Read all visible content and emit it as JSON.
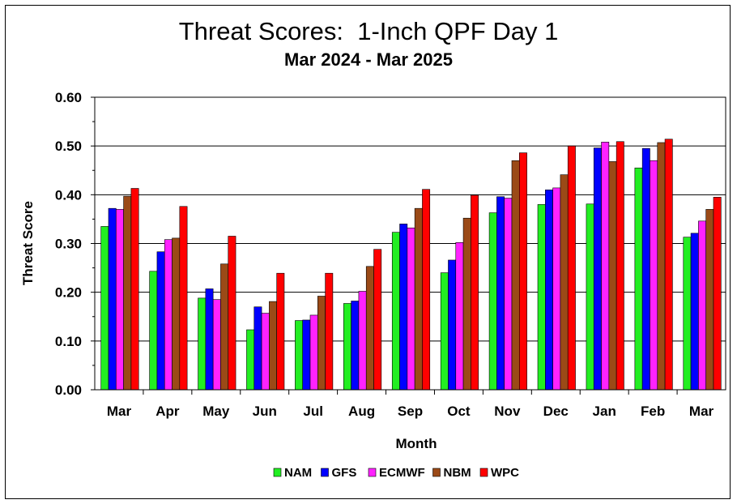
{
  "chart_data": {
    "type": "bar",
    "title": "Threat Scores:  1-Inch QPF Day 1",
    "subtitle": "Mar 2024 - Mar 2025",
    "xlabel": "Month",
    "ylabel": "Threat Score",
    "ylim": [
      0,
      0.6
    ],
    "yticks": [
      "0.00",
      "0.10",
      "0.20",
      "0.30",
      "0.40",
      "0.50",
      "0.60"
    ],
    "grid": "horizontal major",
    "legend_position": "bottom",
    "categories": [
      "Mar",
      "Apr",
      "May",
      "Jun",
      "Jul",
      "Aug",
      "Sep",
      "Oct",
      "Nov",
      "Dec",
      "Jan",
      "Feb",
      "Mar"
    ],
    "series": [
      {
        "name": "NAM",
        "color": "#22ee22",
        "values": [
          0.335,
          0.243,
          0.188,
          0.123,
          0.142,
          0.177,
          0.323,
          0.24,
          0.363,
          0.38,
          0.381,
          0.455,
          0.313
        ]
      },
      {
        "name": "GFS",
        "color": "#0000ff",
        "values": [
          0.372,
          0.283,
          0.207,
          0.17,
          0.143,
          0.182,
          0.34,
          0.266,
          0.396,
          0.41,
          0.496,
          0.495,
          0.321
        ]
      },
      {
        "name": "ECMWF",
        "color": "#ff22ff",
        "values": [
          0.37,
          0.308,
          0.185,
          0.157,
          0.153,
          0.202,
          0.332,
          0.302,
          0.393,
          0.414,
          0.508,
          0.47,
          0.346
        ]
      },
      {
        "name": "NBM",
        "color": "#9b4a17",
        "values": [
          0.397,
          0.311,
          0.258,
          0.181,
          0.192,
          0.253,
          0.372,
          0.352,
          0.47,
          0.441,
          0.468,
          0.507,
          0.37
        ]
      },
      {
        "name": "WPC",
        "color": "#ff0000",
        "values": [
          0.413,
          0.376,
          0.315,
          0.239,
          0.239,
          0.288,
          0.411,
          0.399,
          0.486,
          0.5,
          0.509,
          0.514,
          0.395
        ]
      }
    ]
  }
}
